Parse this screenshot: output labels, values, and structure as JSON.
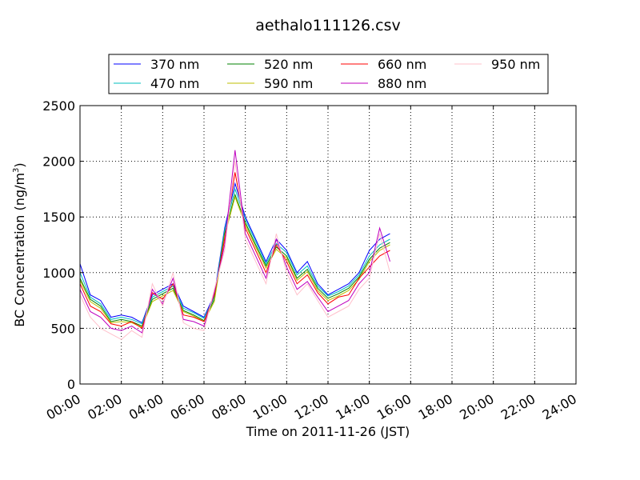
{
  "chart_data": {
    "type": "line",
    "title": "aethalo111126.csv",
    "xlabel": "Time on 2011-11-26 (JST)",
    "ylabel": "BC Concentration (ng/m",
    "ylabel_sup": "3",
    "ylabel_close": ")",
    "xlim": [
      0,
      24
    ],
    "ylim": [
      0,
      2500
    ],
    "grid": true,
    "legend_position": "top",
    "x_ticks": [
      0,
      2,
      4,
      6,
      8,
      10,
      12,
      14,
      16,
      18,
      20,
      22,
      24
    ],
    "x_tick_labels": [
      "00:00",
      "02:00",
      "04:00",
      "06:00",
      "08:00",
      "10:00",
      "12:00",
      "14:00",
      "16:00",
      "18:00",
      "20:00",
      "22:00",
      "24:00"
    ],
    "y_ticks": [
      0,
      500,
      1000,
      1500,
      2000,
      2500
    ],
    "y_tick_labels": [
      "0",
      "500",
      "1000",
      "1500",
      "2000",
      "2500"
    ],
    "x": [
      0.0,
      0.5,
      1.0,
      1.5,
      2.0,
      2.5,
      3.0,
      3.5,
      4.0,
      4.5,
      5.0,
      5.5,
      6.0,
      6.5,
      7.0,
      7.5,
      8.0,
      8.5,
      9.0,
      9.5,
      10.0,
      10.5,
      11.0,
      11.5,
      12.0,
      12.5,
      13.0,
      13.5,
      14.0,
      14.5,
      15.0
    ],
    "series": [
      {
        "name": "370 nm",
        "color": "#0000ff",
        "values": [
          1080,
          800,
          750,
          600,
          620,
          600,
          550,
          800,
          850,
          900,
          700,
          650,
          600,
          800,
          1400,
          1800,
          1500,
          1300,
          1100,
          1300,
          1200,
          1000,
          1100,
          900,
          800,
          850,
          900,
          1000,
          1200,
          1300,
          1350
        ]
      },
      {
        "name": "470 nm",
        "color": "#00bfbf",
        "values": [
          1000,
          780,
          720,
          580,
          600,
          580,
          540,
          780,
          830,
          880,
          680,
          640,
          590,
          780,
          1380,
          1750,
          1480,
          1280,
          1080,
          1260,
          1180,
          980,
          1060,
          880,
          790,
          830,
          880,
          980,
          1150,
          1250,
          1300
        ]
      },
      {
        "name": "520 nm",
        "color": "#008000",
        "values": [
          950,
          760,
          700,
          560,
          580,
          560,
          520,
          760,
          810,
          860,
          660,
          620,
          570,
          760,
          1350,
          1700,
          1450,
          1250,
          1060,
          1230,
          1150,
          950,
          1030,
          860,
          770,
          810,
          860,
          960,
          1120,
          1220,
          1270
        ]
      },
      {
        "name": "590 nm",
        "color": "#bfbf00",
        "values": [
          930,
          740,
          680,
          550,
          560,
          550,
          510,
          740,
          790,
          840,
          650,
          610,
          560,
          740,
          1330,
          1680,
          1430,
          1230,
          1040,
          1210,
          1130,
          930,
          1010,
          840,
          750,
          790,
          840,
          940,
          1100,
          1200,
          1250
        ]
      },
      {
        "name": "660 nm",
        "color": "#ff0000",
        "values": [
          900,
          700,
          650,
          540,
          520,
          560,
          500,
          820,
          760,
          900,
          620,
          600,
          560,
          800,
          1300,
          1900,
          1400,
          1200,
          1000,
          1250,
          1100,
          900,
          980,
          820,
          720,
          780,
          800,
          950,
          1050,
          1150,
          1200
        ]
      },
      {
        "name": "880 nm",
        "color": "#bf00bf",
        "values": [
          850,
          650,
          600,
          500,
          480,
          520,
          460,
          850,
          720,
          950,
          580,
          560,
          520,
          820,
          1250,
          2100,
          1350,
          1150,
          950,
          1300,
          1050,
          850,
          920,
          780,
          650,
          700,
          750,
          900,
          1000,
          1400,
          1100
        ]
      },
      {
        "name": "950 nm",
        "color": "#ffc0cb",
        "values": [
          800,
          600,
          500,
          450,
          400,
          480,
          420,
          900,
          700,
          1000,
          550,
          500,
          480,
          850,
          1200,
          2000,
          1300,
          1100,
          900,
          1350,
          1000,
          800,
          900,
          750,
          600,
          650,
          700,
          850,
          950,
          1350,
          1000
        ]
      }
    ]
  }
}
